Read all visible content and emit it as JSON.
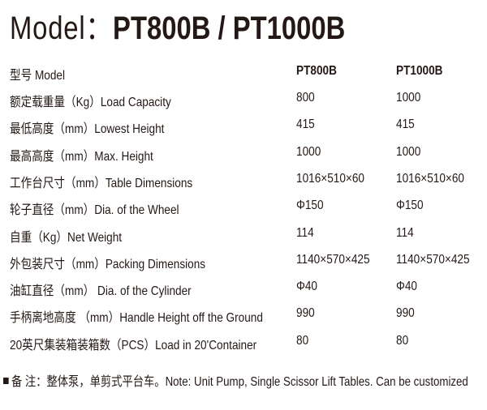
{
  "title": {
    "prefix": "Model：",
    "models": "PT800B / PT1000B"
  },
  "table": {
    "header": [
      "型号 Model",
      "PT800B",
      "PT1000B"
    ],
    "rows": [
      [
        "额定载重量（Kg）Load Capacity",
        "800",
        "1000"
      ],
      [
        "最低高度（mm）Lowest Height",
        "415",
        "415"
      ],
      [
        "最高高度（mm）Max. Height",
        "1000",
        "1000"
      ],
      [
        "工作台尺寸（mm）Table Dimensions",
        "1016×510×60",
        "1016×510×60"
      ],
      [
        "轮子直径（mm）Dia. of the Wheel",
        "Φ150",
        "Φ150"
      ],
      [
        "自重（Kg）Net Weight",
        "114",
        "114"
      ],
      [
        "外包装尺寸（mm）Packing Dimensions",
        "1140×570×425",
        "1140×570×425"
      ],
      [
        "油缸直径（mm） Dia. of the Cylinder",
        "Φ40",
        "Φ40"
      ],
      [
        "手柄离地高度 （mm）Handle Height off the Ground",
        "990",
        "990"
      ],
      [
        "20英尺集装箱装箱数（PCS）Load in 20'Container",
        "80",
        "80"
      ]
    ]
  },
  "note": "备 注：整体泵，单剪式平台车。Note: Unit Pump, Single Scissor Lift Tables.   Can be customized"
}
